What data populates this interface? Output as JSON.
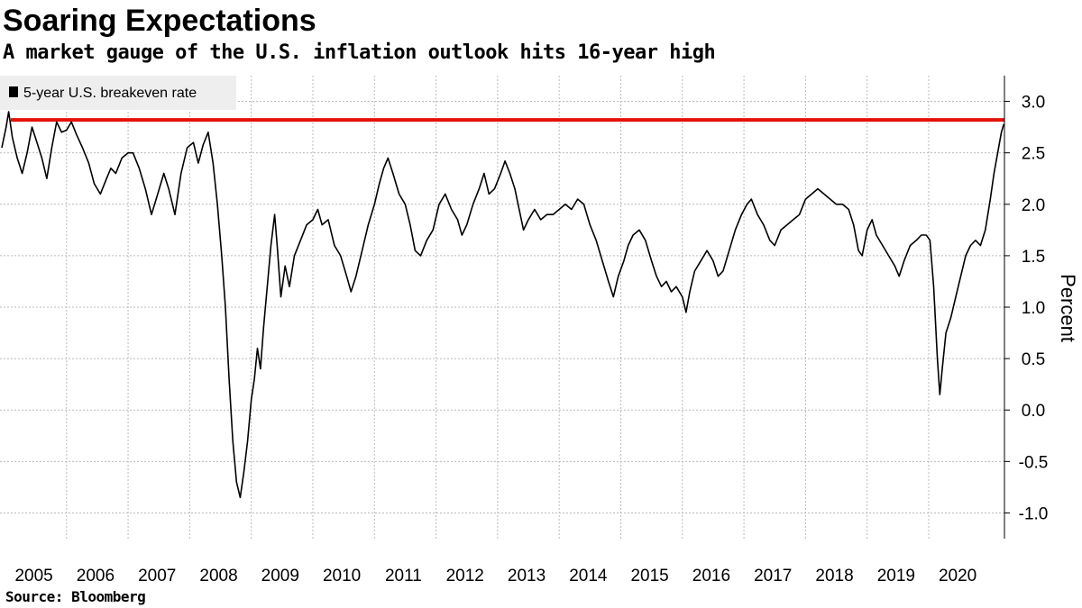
{
  "chart_data": {
    "type": "line",
    "title": "Soaring Expectations",
    "subtitle": "A market gauge of the U.S. inflation outlook hits 16-year high",
    "source": "Source: Bloomberg",
    "ylabel": "Percent",
    "xlabel": "",
    "ylim": [
      -1.25,
      3.25
    ],
    "y_ticks": [
      -1.0,
      -0.5,
      0.0,
      0.5,
      1.0,
      1.5,
      2.0,
      2.5,
      3.0
    ],
    "y_tick_labels": [
      "-1.0",
      "-0.5",
      "0.0",
      "0.5",
      "1.0",
      "1.5",
      "2.0",
      "2.5",
      "3.0"
    ],
    "xlim": [
      2004.92,
      2021.23
    ],
    "x_ticks": [
      2005,
      2006,
      2007,
      2008,
      2009,
      2010,
      2011,
      2012,
      2013,
      2014,
      2015,
      2016,
      2017,
      2018,
      2019,
      2020
    ],
    "x_tick_labels": [
      "2005",
      "2006",
      "2007",
      "2008",
      "2009",
      "2010",
      "2011",
      "2012",
      "2013",
      "2014",
      "2015",
      "2016",
      "2017",
      "2018",
      "2019",
      "2020"
    ],
    "grid": true,
    "legend_position": "top-left",
    "reference_line": {
      "y": 2.82,
      "color": "#e3120b"
    },
    "series": [
      {
        "name": "5-year U.S. breakeven rate",
        "color": "#000000",
        "points": [
          [
            2004.95,
            2.55
          ],
          [
            2005.02,
            2.75
          ],
          [
            2005.06,
            2.9
          ],
          [
            2005.12,
            2.65
          ],
          [
            2005.2,
            2.45
          ],
          [
            2005.28,
            2.3
          ],
          [
            2005.36,
            2.5
          ],
          [
            2005.44,
            2.75
          ],
          [
            2005.52,
            2.6
          ],
          [
            2005.6,
            2.45
          ],
          [
            2005.68,
            2.25
          ],
          [
            2005.76,
            2.55
          ],
          [
            2005.84,
            2.8
          ],
          [
            2005.92,
            2.7
          ],
          [
            2006.0,
            2.72
          ],
          [
            2006.08,
            2.8
          ],
          [
            2006.16,
            2.68
          ],
          [
            2006.26,
            2.55
          ],
          [
            2006.36,
            2.4
          ],
          [
            2006.45,
            2.2
          ],
          [
            2006.55,
            2.1
          ],
          [
            2006.65,
            2.25
          ],
          [
            2006.72,
            2.35
          ],
          [
            2006.8,
            2.3
          ],
          [
            2006.9,
            2.45
          ],
          [
            2007.0,
            2.5
          ],
          [
            2007.08,
            2.5
          ],
          [
            2007.18,
            2.35
          ],
          [
            2007.28,
            2.15
          ],
          [
            2007.38,
            1.9
          ],
          [
            2007.48,
            2.1
          ],
          [
            2007.58,
            2.3
          ],
          [
            2007.66,
            2.15
          ],
          [
            2007.76,
            1.9
          ],
          [
            2007.86,
            2.3
          ],
          [
            2007.96,
            2.55
          ],
          [
            2008.06,
            2.6
          ],
          [
            2008.14,
            2.4
          ],
          [
            2008.22,
            2.58
          ],
          [
            2008.3,
            2.7
          ],
          [
            2008.38,
            2.4
          ],
          [
            2008.45,
            2.0
          ],
          [
            2008.52,
            1.5
          ],
          [
            2008.58,
            1.0
          ],
          [
            2008.64,
            0.3
          ],
          [
            2008.7,
            -0.3
          ],
          [
            2008.76,
            -0.7
          ],
          [
            2008.82,
            -0.85
          ],
          [
            2008.88,
            -0.6
          ],
          [
            2008.94,
            -0.3
          ],
          [
            2009.0,
            0.1
          ],
          [
            2009.05,
            0.3
          ],
          [
            2009.1,
            0.6
          ],
          [
            2009.15,
            0.4
          ],
          [
            2009.2,
            0.8
          ],
          [
            2009.26,
            1.2
          ],
          [
            2009.32,
            1.6
          ],
          [
            2009.38,
            1.9
          ],
          [
            2009.42,
            1.6
          ],
          [
            2009.48,
            1.1
          ],
          [
            2009.55,
            1.4
          ],
          [
            2009.62,
            1.2
          ],
          [
            2009.7,
            1.5
          ],
          [
            2009.8,
            1.65
          ],
          [
            2009.9,
            1.8
          ],
          [
            2010.0,
            1.85
          ],
          [
            2010.08,
            1.95
          ],
          [
            2010.15,
            1.8
          ],
          [
            2010.25,
            1.85
          ],
          [
            2010.35,
            1.6
          ],
          [
            2010.45,
            1.5
          ],
          [
            2010.55,
            1.3
          ],
          [
            2010.62,
            1.15
          ],
          [
            2010.7,
            1.3
          ],
          [
            2010.8,
            1.55
          ],
          [
            2010.9,
            1.8
          ],
          [
            2011.0,
            2.0
          ],
          [
            2011.08,
            2.2
          ],
          [
            2011.15,
            2.35
          ],
          [
            2011.22,
            2.45
          ],
          [
            2011.3,
            2.3
          ],
          [
            2011.4,
            2.1
          ],
          [
            2011.5,
            2.0
          ],
          [
            2011.58,
            1.8
          ],
          [
            2011.66,
            1.55
          ],
          [
            2011.75,
            1.5
          ],
          [
            2011.85,
            1.65
          ],
          [
            2011.95,
            1.75
          ],
          [
            2012.05,
            2.0
          ],
          [
            2012.15,
            2.1
          ],
          [
            2012.25,
            1.95
          ],
          [
            2012.35,
            1.85
          ],
          [
            2012.42,
            1.7
          ],
          [
            2012.5,
            1.8
          ],
          [
            2012.6,
            2.0
          ],
          [
            2012.7,
            2.15
          ],
          [
            2012.78,
            2.3
          ],
          [
            2012.86,
            2.1
          ],
          [
            2012.95,
            2.15
          ],
          [
            2013.05,
            2.3
          ],
          [
            2013.12,
            2.42
          ],
          [
            2013.2,
            2.3
          ],
          [
            2013.28,
            2.15
          ],
          [
            2013.35,
            1.95
          ],
          [
            2013.42,
            1.75
          ],
          [
            2013.5,
            1.85
          ],
          [
            2013.6,
            1.95
          ],
          [
            2013.7,
            1.85
          ],
          [
            2013.8,
            1.9
          ],
          [
            2013.9,
            1.9
          ],
          [
            2014.0,
            1.95
          ],
          [
            2014.1,
            2.0
          ],
          [
            2014.2,
            1.95
          ],
          [
            2014.3,
            2.05
          ],
          [
            2014.4,
            2.0
          ],
          [
            2014.5,
            1.8
          ],
          [
            2014.6,
            1.65
          ],
          [
            2014.7,
            1.45
          ],
          [
            2014.8,
            1.25
          ],
          [
            2014.88,
            1.1
          ],
          [
            2014.96,
            1.3
          ],
          [
            2015.05,
            1.45
          ],
          [
            2015.12,
            1.6
          ],
          [
            2015.2,
            1.7
          ],
          [
            2015.3,
            1.75
          ],
          [
            2015.4,
            1.65
          ],
          [
            2015.5,
            1.45
          ],
          [
            2015.58,
            1.3
          ],
          [
            2015.66,
            1.2
          ],
          [
            2015.74,
            1.25
          ],
          [
            2015.82,
            1.15
          ],
          [
            2015.9,
            1.2
          ],
          [
            2016.0,
            1.1
          ],
          [
            2016.06,
            0.95
          ],
          [
            2016.12,
            1.15
          ],
          [
            2016.2,
            1.35
          ],
          [
            2016.3,
            1.45
          ],
          [
            2016.4,
            1.55
          ],
          [
            2016.5,
            1.45
          ],
          [
            2016.58,
            1.3
          ],
          [
            2016.66,
            1.35
          ],
          [
            2016.76,
            1.55
          ],
          [
            2016.86,
            1.75
          ],
          [
            2016.96,
            1.9
          ],
          [
            2017.05,
            2.0
          ],
          [
            2017.12,
            2.05
          ],
          [
            2017.22,
            1.9
          ],
          [
            2017.32,
            1.8
          ],
          [
            2017.42,
            1.65
          ],
          [
            2017.5,
            1.6
          ],
          [
            2017.6,
            1.75
          ],
          [
            2017.7,
            1.8
          ],
          [
            2017.8,
            1.85
          ],
          [
            2017.9,
            1.9
          ],
          [
            2018.0,
            2.05
          ],
          [
            2018.1,
            2.1
          ],
          [
            2018.2,
            2.15
          ],
          [
            2018.3,
            2.1
          ],
          [
            2018.4,
            2.05
          ],
          [
            2018.5,
            2.0
          ],
          [
            2018.6,
            2.0
          ],
          [
            2018.7,
            1.95
          ],
          [
            2018.78,
            1.8
          ],
          [
            2018.86,
            1.55
          ],
          [
            2018.92,
            1.5
          ],
          [
            2019.0,
            1.75
          ],
          [
            2019.08,
            1.85
          ],
          [
            2019.15,
            1.7
          ],
          [
            2019.25,
            1.6
          ],
          [
            2019.35,
            1.5
          ],
          [
            2019.45,
            1.4
          ],
          [
            2019.52,
            1.3
          ],
          [
            2019.6,
            1.45
          ],
          [
            2019.7,
            1.6
          ],
          [
            2019.8,
            1.65
          ],
          [
            2019.88,
            1.7
          ],
          [
            2019.96,
            1.7
          ],
          [
            2020.02,
            1.65
          ],
          [
            2020.08,
            1.2
          ],
          [
            2020.14,
            0.5
          ],
          [
            2020.18,
            0.15
          ],
          [
            2020.22,
            0.4
          ],
          [
            2020.28,
            0.75
          ],
          [
            2020.36,
            0.9
          ],
          [
            2020.44,
            1.1
          ],
          [
            2020.52,
            1.3
          ],
          [
            2020.6,
            1.5
          ],
          [
            2020.68,
            1.6
          ],
          [
            2020.76,
            1.65
          ],
          [
            2020.84,
            1.6
          ],
          [
            2020.92,
            1.75
          ],
          [
            2021.0,
            2.05
          ],
          [
            2021.06,
            2.3
          ],
          [
            2021.12,
            2.5
          ],
          [
            2021.18,
            2.7
          ],
          [
            2021.22,
            2.78
          ]
        ]
      }
    ]
  }
}
